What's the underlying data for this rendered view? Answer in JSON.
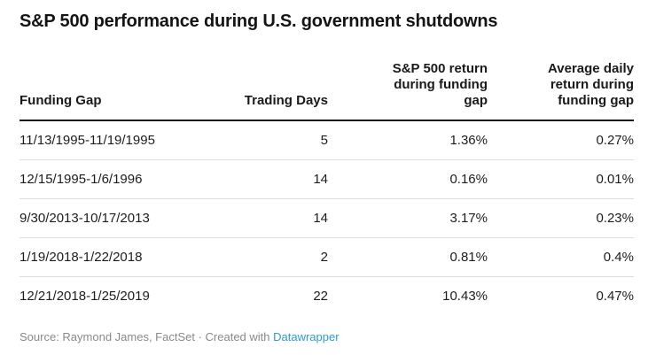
{
  "title": "S&P 500 performance during U.S. government shutdowns",
  "table": {
    "columns": [
      {
        "key": "funding-gap",
        "label": "Funding Gap",
        "align": "left"
      },
      {
        "key": "trading-days",
        "label": "Trading Days",
        "align": "right"
      },
      {
        "key": "sp500-return",
        "label": "S&P 500 return during funding gap",
        "align": "right"
      },
      {
        "key": "avg-daily-return",
        "label": "Average daily return during funding gap",
        "align": "right"
      }
    ],
    "rows": [
      [
        "11/13/1995-11/19/1995",
        "5",
        "1.36%",
        "0.27%"
      ],
      [
        "12/15/1995-1/6/1996",
        "14",
        "0.16%",
        "0.01%"
      ],
      [
        "9/30/2013-10/17/2013",
        "14",
        "3.17%",
        "0.23%"
      ],
      [
        "1/19/2018-1/22/2018",
        "2",
        "0.81%",
        "0.4%"
      ],
      [
        "12/21/2018-1/25/2019",
        "22",
        "10.43%",
        "0.47%"
      ]
    ]
  },
  "footer": {
    "source_text": "Source: Raymond James, FactSet · Created with ",
    "link_label": "Datawrapper"
  },
  "colors": {
    "title_text": "#141414",
    "body_text": "#1d1d1d",
    "header_rule": "#1a1a1a",
    "row_divider": "#dddddd",
    "footer_text": "#8a8a8a",
    "link_blue": "#2b9cd8"
  },
  "chart_data": {
    "type": "table",
    "title": "S&P 500 performance during U.S. government shutdowns",
    "columns": [
      "Funding Gap",
      "Trading Days",
      "S&P 500 return during funding gap",
      "Average daily return during funding gap"
    ],
    "rows": [
      [
        "11/13/1995-11/19/1995",
        5,
        "1.36%",
        "0.27%"
      ],
      [
        "12/15/1995-1/6/1996",
        14,
        "0.16%",
        "0.01%"
      ],
      [
        "9/30/2013-10/17/2013",
        14,
        "3.17%",
        "0.23%"
      ],
      [
        "1/19/2018-1/22/2018",
        2,
        "0.81%",
        "0.4%"
      ],
      [
        "12/21/2018-1/25/2019",
        22,
        "10.43%",
        "0.47%"
      ]
    ]
  }
}
